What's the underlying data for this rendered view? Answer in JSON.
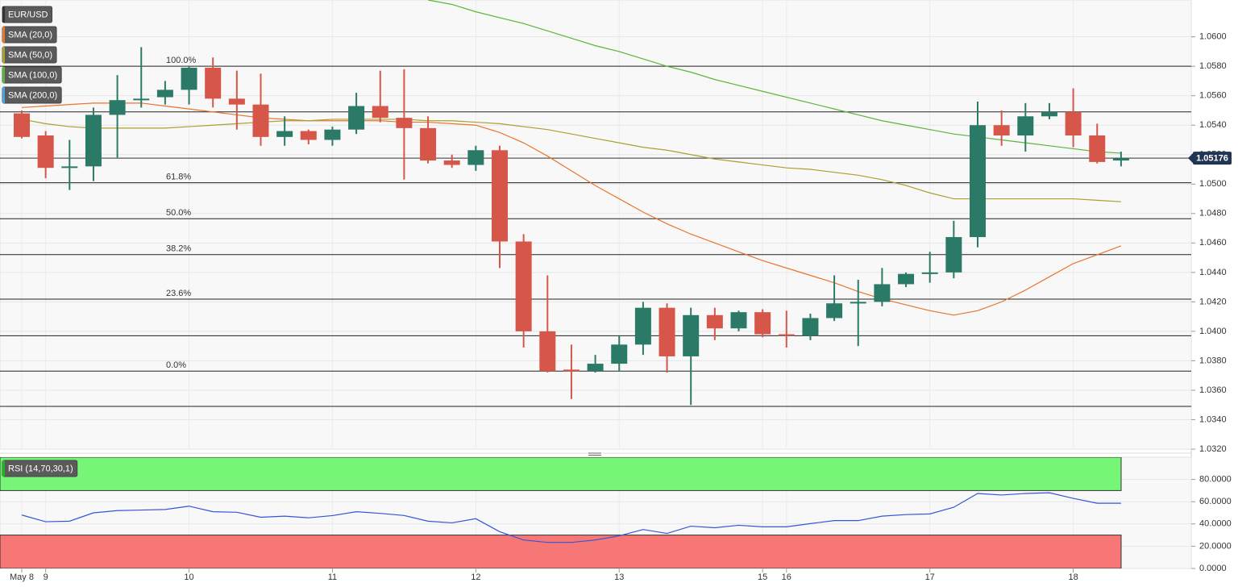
{
  "chart_data": [
    {
      "type": "candlestick",
      "title": "EUR/USD",
      "categories": [
        "May 8",
        "9",
        null,
        null,
        null,
        null,
        null,
        "10",
        null,
        null,
        null,
        null,
        null,
        "11",
        null,
        null,
        null,
        null,
        null,
        "12",
        null,
        null,
        null,
        null,
        null,
        "13",
        null,
        null,
        null,
        null,
        null,
        "15",
        "16",
        null,
        null,
        null,
        null,
        null,
        "17",
        null,
        null,
        null,
        null,
        null,
        "18",
        null,
        null
      ],
      "open": [
        1.0548,
        1.0533,
        1.0511,
        1.0512,
        1.0547,
        1.0557,
        1.0559,
        1.0564,
        1.0579,
        1.0558,
        1.0554,
        1.0532,
        1.0536,
        1.053,
        1.0537,
        1.0553,
        1.0545,
        1.0538,
        1.0516,
        1.0513,
        1.0523,
        1.0461,
        1.04,
        1.0374,
        1.0373,
        1.0378,
        1.0391,
        1.0416,
        1.0383,
        1.0411,
        1.0402,
        1.0413,
        1.0398,
        1.0397,
        1.0409,
        1.0419,
        1.042,
        1.0432,
        1.0439,
        1.044,
        1.0464,
        1.054,
        1.0533,
        1.0546,
        1.0549,
        1.0533,
        1.0516
      ],
      "high": [
        1.055,
        1.0536,
        1.053,
        1.0552,
        1.0574,
        1.0593,
        1.057,
        1.058,
        1.0586,
        1.0577,
        1.0575,
        1.0546,
        1.0537,
        1.0539,
        1.0562,
        1.0577,
        1.0578,
        1.0546,
        1.052,
        1.0526,
        1.0526,
        1.0466,
        1.0438,
        1.0391,
        1.0384,
        1.0397,
        1.042,
        1.0419,
        1.0416,
        1.0416,
        1.0414,
        1.0415,
        1.0414,
        1.0412,
        1.0438,
        1.0435,
        1.0443,
        1.044,
        1.0454,
        1.0475,
        1.0556,
        1.055,
        1.0555,
        1.0555,
        1.0565,
        1.0541,
        1.0522
      ],
      "low": [
        1.0531,
        1.0504,
        1.0496,
        1.0502,
        1.0518,
        1.0552,
        1.0554,
        1.0554,
        1.0552,
        1.0537,
        1.0526,
        1.0526,
        1.0527,
        1.0526,
        1.0534,
        1.0542,
        1.0503,
        1.0514,
        1.0511,
        1.0509,
        1.0443,
        1.0389,
        1.0372,
        1.0354,
        1.0372,
        1.0373,
        1.0384,
        1.0372,
        1.035,
        1.0394,
        1.04,
        1.0396,
        1.0389,
        1.0394,
        1.0407,
        1.039,
        1.0417,
        1.043,
        1.0433,
        1.0436,
        1.0457,
        1.0526,
        1.0522,
        1.0544,
        1.0525,
        1.0514,
        1.0512
      ],
      "close": [
        1.0532,
        1.0511,
        1.0512,
        1.0547,
        1.0557,
        1.0558,
        1.0564,
        1.0579,
        1.0558,
        1.0554,
        1.0532,
        1.0536,
        1.053,
        1.0537,
        1.0553,
        1.0545,
        1.0538,
        1.0516,
        1.0513,
        1.0523,
        1.0461,
        1.04,
        1.0373,
        1.0373,
        1.0378,
        1.0391,
        1.0416,
        1.0383,
        1.0411,
        1.0402,
        1.0413,
        1.0398,
        1.0397,
        1.0409,
        1.0419,
        1.042,
        1.0432,
        1.0439,
        1.044,
        1.0464,
        1.054,
        1.0533,
        1.0546,
        1.0549,
        1.0533,
        1.0515,
        1.05176
      ],
      "up_color": "#2b7a68",
      "down_color": "#d6574a",
      "series": [
        {
          "name": "SMA (20,0)",
          "color": "#e8762c",
          "values": [
            1.0552,
            1.0553,
            1.0554,
            1.0555,
            1.0555,
            1.0555,
            1.0553,
            1.0551,
            1.0549,
            1.0547,
            1.0545,
            1.0544,
            1.0543,
            1.0543,
            1.0543,
            1.0543,
            1.0542,
            1.0542,
            1.0541,
            1.054,
            1.0535,
            1.0528,
            1.0519,
            1.0509,
            1.0499,
            1.049,
            1.0481,
            1.0473,
            1.0466,
            1.046,
            1.0454,
            1.0448,
            1.0443,
            1.0438,
            1.0433,
            1.0427,
            1.0422,
            1.0418,
            1.0414,
            1.0411,
            1.0414,
            1.042,
            1.0428,
            1.0437,
            1.0446,
            1.0452,
            1.0458
          ]
        },
        {
          "name": "SMA (50,0)",
          "color": "#a9a12e",
          "values": [
            1.0544,
            1.0541,
            1.0539,
            1.0538,
            1.0538,
            1.0538,
            1.0538,
            1.0539,
            1.054,
            1.0541,
            1.0542,
            1.0543,
            1.0543,
            1.0544,
            1.0544,
            1.0544,
            1.0544,
            1.0543,
            1.0543,
            1.0542,
            1.0541,
            1.0539,
            1.0537,
            1.0534,
            1.0531,
            1.0528,
            1.0525,
            1.0523,
            1.052,
            1.0517,
            1.0515,
            1.0513,
            1.0511,
            1.051,
            1.0508,
            1.0506,
            1.0503,
            1.0499,
            1.0494,
            1.049,
            1.049,
            1.049,
            1.049,
            1.049,
            1.049,
            1.0489,
            1.0488
          ]
        },
        {
          "name": "SMA (100,0)",
          "color": "#5cb53a",
          "values": [
            null,
            null,
            null,
            null,
            null,
            null,
            null,
            null,
            null,
            null,
            null,
            null,
            null,
            null,
            null,
            null,
            null,
            1.0625,
            1.0622,
            1.0617,
            1.0613,
            1.0609,
            1.0604,
            1.0599,
            1.0594,
            1.059,
            1.0585,
            1.058,
            1.0576,
            1.0571,
            1.0567,
            1.0563,
            1.0559,
            1.0555,
            1.0551,
            1.0547,
            1.0543,
            1.054,
            1.0537,
            1.0534,
            1.0532,
            1.053,
            1.0528,
            1.0526,
            1.0524,
            1.0522,
            1.0521
          ]
        },
        {
          "name": "SMA (200,0)",
          "color": "#4aa3df",
          "values": [
            null,
            null,
            null,
            null,
            null,
            null,
            null,
            null,
            null,
            null,
            null,
            null,
            null,
            null,
            null,
            null,
            null,
            null,
            null,
            null,
            null,
            null,
            null,
            null,
            null,
            null,
            null,
            null,
            null,
            null,
            null,
            null,
            null,
            null,
            null,
            null,
            null,
            null,
            null,
            null,
            null,
            null,
            null,
            null,
            null,
            null,
            null
          ]
        }
      ],
      "fib": {
        "high": 1.058,
        "low": 1.0373,
        "levels": [
          100,
          61.8,
          50,
          38.2,
          23.6,
          0
        ],
        "level_labels": [
          "100.0%",
          "61.8%",
          "50.0%",
          "38.2%",
          "23.6%",
          "0.0%"
        ]
      },
      "lines": [
        1.0549,
        1.0397,
        1.0349
      ],
      "last_price": 1.05176,
      "ylim": [
        1.032,
        1.0625
      ],
      "yticks": [
        {
          "value": 1.032,
          "label": "1.0320"
        },
        {
          "value": 1.034,
          "label": "1.0340"
        },
        {
          "value": 1.036,
          "label": "1.0360"
        },
        {
          "value": 1.038,
          "label": "1.0380"
        },
        {
          "value": 1.04,
          "label": "1.0400"
        },
        {
          "value": 1.042,
          "label": "1.0420"
        },
        {
          "value": 1.044,
          "label": "1.0440"
        },
        {
          "value": 1.046,
          "label": "1.0460"
        },
        {
          "value": 1.048,
          "label": "1.0480"
        },
        {
          "value": 1.05,
          "label": "1.0500"
        },
        {
          "value": 1.052,
          "label": "1.0520"
        },
        {
          "value": 1.054,
          "label": "1.0540"
        },
        {
          "value": 1.056,
          "label": "1.0560"
        },
        {
          "value": 1.058,
          "label": "1.0580"
        },
        {
          "value": 1.06,
          "label": "1.0600"
        }
      ],
      "grid": true
    },
    {
      "type": "line",
      "title": "RSI (14,70,30,1)",
      "color": "#3555d8",
      "title_color": "#22b522",
      "values": [
        48,
        42,
        42.5,
        50,
        52,
        52.5,
        53,
        56,
        51,
        50.5,
        46,
        47,
        45.5,
        47.5,
        51,
        49.5,
        47.6,
        42.5,
        41,
        44.7,
        33,
        25.6,
        23.4,
        23.4,
        25.6,
        29.3,
        35,
        31.5,
        38,
        36.6,
        38.8,
        37.4,
        37.4,
        40.3,
        43,
        43,
        47,
        48.4,
        49,
        55,
        67.4,
        66,
        67.4,
        68,
        63,
        58.6,
        58.6
      ],
      "overbought": 70,
      "oversold": 30,
      "overbought_color": "#77f577",
      "oversold_color": "#f77777",
      "ylim": [
        0,
        100
      ],
      "yticks": [
        {
          "value": 0,
          "label": "0.0000"
        },
        {
          "value": 20,
          "label": "20.0000"
        },
        {
          "value": 40,
          "label": "40.0000"
        },
        {
          "value": 60,
          "label": "60.0000"
        },
        {
          "value": 80,
          "label": "80.0000"
        }
      ],
      "grid": true
    }
  ]
}
